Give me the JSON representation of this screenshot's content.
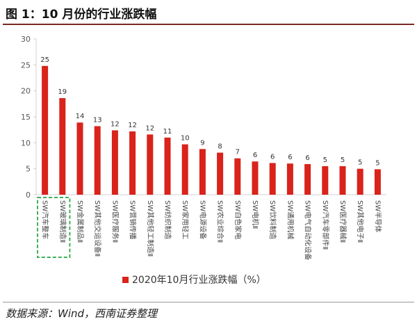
{
  "title": "图 1：10 月份的行业涨跌幅",
  "source": "数据来源：Wind，西南证券整理",
  "chart_data": {
    "type": "bar",
    "categories": [
      "SW汽车整车",
      "SW玻璃制造Ⅱ",
      "SW金属制品Ⅱ",
      "SW其他交运设备Ⅱ",
      "SW医疗服务Ⅱ",
      "SW营销传播",
      "SW其他轻工制造Ⅱ",
      "SW纺织制造",
      "SW家用轻工",
      "SW电源设备",
      "SW农业综合Ⅱ",
      "SW白色家电",
      "SW电机Ⅱ",
      "SW饮料制造",
      "SW通用机械",
      "SW电气自动化设备",
      "SW汽车零部件Ⅱ",
      "SW医疗器械Ⅱ",
      "SW其他电子Ⅱ",
      "SW半导体"
    ],
    "series": [
      {
        "name": "2020年10月行业涨跌幅（%）",
        "values": [
          24.8,
          18.6,
          13.9,
          13.2,
          12.4,
          12.2,
          11.6,
          11.0,
          9.7,
          8.8,
          8.1,
          7.0,
          6.4,
          6.1,
          6.0,
          5.9,
          5.5,
          5.5,
          5.0,
          4.9
        ],
        "labels": [
          "25",
          "19",
          "14",
          "13",
          "12",
          "12",
          "12",
          "11",
          "10",
          "9",
          "8",
          "7",
          "6",
          "6",
          "6",
          "6",
          "5",
          "5",
          "5",
          "5"
        ]
      }
    ],
    "yticks": [
      "0",
      "5",
      "10",
      "15",
      "20",
      "25",
      "30"
    ],
    "ylim": [
      0,
      30
    ],
    "grid": false,
    "legend_position": "bottom",
    "colors": {
      "bar": "#d9231b",
      "highlight_box": "#3cae5a",
      "axis": "#d0d0d0"
    },
    "highlight_box_note": "dashed box around first two categories"
  }
}
